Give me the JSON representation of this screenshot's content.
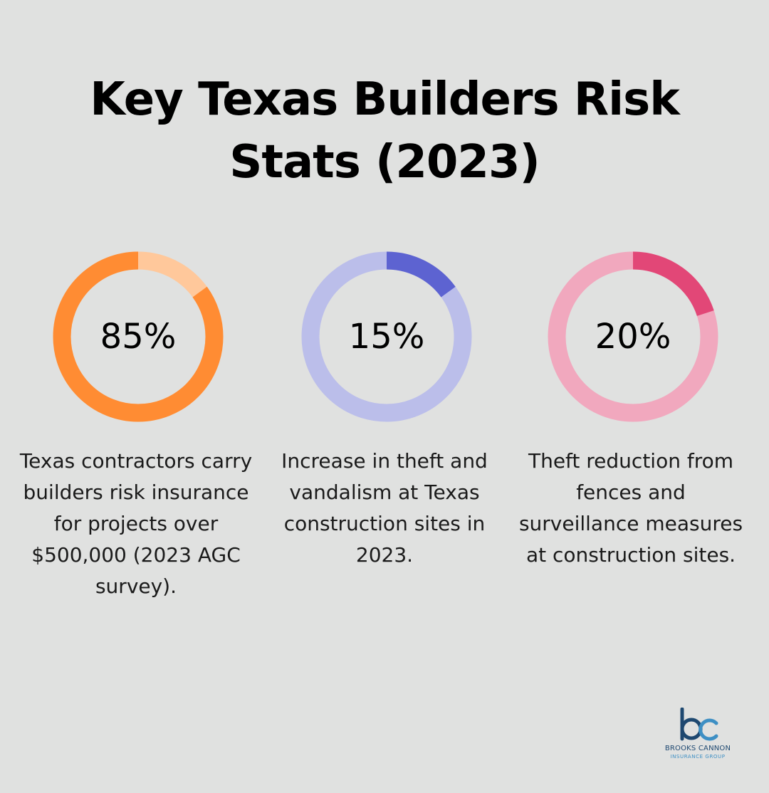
{
  "title_line1": "Key Texas Builders Risk",
  "title_line2": "Stats (2023)",
  "chart_data": [
    {
      "type": "pie",
      "value": 85,
      "label": "85%",
      "description": "Texas contractors carry builders risk insurance for projects over $500,000 (2023 AGC survey).",
      "colors": {
        "highlight": "#ff8c33",
        "track": "#ffc89b"
      },
      "ring": "remainder"
    },
    {
      "type": "pie",
      "value": 15,
      "label": "15%",
      "description": "Increase in theft and vandalism at Texas construction sites in 2023.",
      "colors": {
        "highlight": "#5d63d1",
        "track": "#bbbeea"
      },
      "ring": "value"
    },
    {
      "type": "pie",
      "value": 20,
      "label": "20%",
      "description": "Theft reduction from fences and surveillance measures at construction sites.",
      "colors": {
        "highlight": "#e24777",
        "track": "#f1a8be"
      },
      "ring": "value"
    }
  ],
  "logo": {
    "mark": "bc",
    "name": "BROOKS CANNON",
    "subtitle": "INSURANCE GROUP",
    "colors": {
      "dark": "#1e4870",
      "light": "#3d8fc4"
    }
  }
}
